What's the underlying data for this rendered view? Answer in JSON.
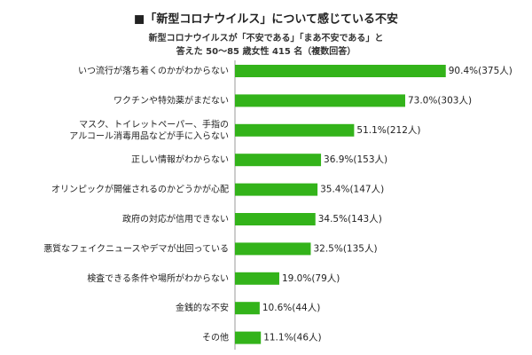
{
  "chart_data": {
    "type": "bar",
    "orientation": "horizontal",
    "title": "■「新型コロナウイルス」について感じている不安",
    "subtitle": [
      "新型コロナウイルスが「不安である」「まあ不安である」と",
      "答えた 50～85 歳女性 415 名（複数回答）"
    ],
    "categories": [
      "いつ流行が落ち着くのかがわからない",
      "ワクチンや特効薬がまだない",
      [
        "マスク、トイレットペーパー、手指の",
        "アルコール消毒用品などが手に入らない"
      ],
      "正しい情報がわからない",
      "オリンピックが開催されるのかどうかが心配",
      "政府の対応が信用できない",
      "悪質なフェイクニュースやデマが出回っている",
      "検査できる条件や場所がわからない",
      "金銭的な不安",
      "その他"
    ],
    "values": [
      90.4,
      73.0,
      51.1,
      36.9,
      35.4,
      34.5,
      32.5,
      19.0,
      10.6,
      11.1
    ],
    "value_labels": [
      "90.4%(375人)",
      "73.0%(303人)",
      "51.1%(212人)",
      "36.9%(153人)",
      "35.4%(147人)",
      "34.5%(143人)",
      "32.5%(135人)",
      "19.0%(79人)",
      "10.6%(44人)",
      "11.1%(46人)"
    ],
    "color": "#33b31a"
  }
}
